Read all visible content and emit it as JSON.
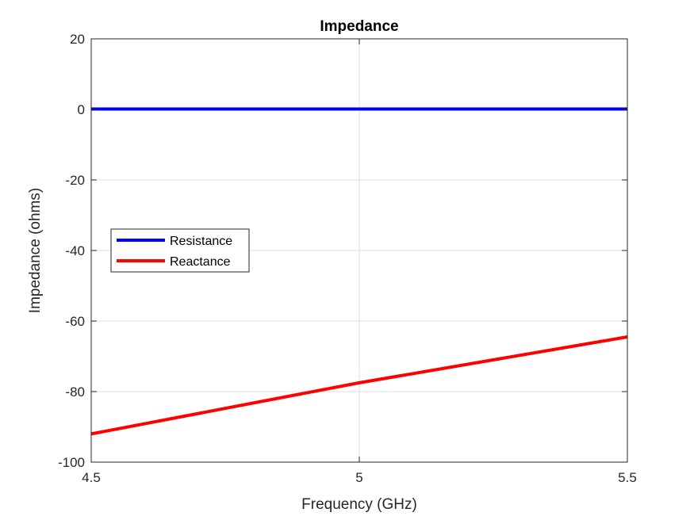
{
  "chart_data": {
    "type": "line",
    "title": "Impedance",
    "xlabel": "Frequency (GHz)",
    "ylabel": "Impedance (ohms)",
    "xlim": [
      4.5,
      5.5
    ],
    "ylim": [
      -100,
      20
    ],
    "xticks": [
      4.5,
      5,
      5.5
    ],
    "xtick_labels": [
      "4.5",
      "5",
      "5.5"
    ],
    "yticks": [
      20,
      0,
      -20,
      -40,
      -60,
      -80,
      -100
    ],
    "ytick_labels": [
      "20",
      "0",
      "-20",
      "-40",
      "-60",
      "-80",
      "-100"
    ],
    "grid": true,
    "legend_position": "middle-left",
    "series": [
      {
        "name": "Resistance",
        "color": "#0000ff",
        "x": [
          4.5,
          5.0,
          5.5
        ],
        "y": [
          0.1,
          0.1,
          0.1
        ]
      },
      {
        "name": "Reactance",
        "color": "#ff0000",
        "x": [
          4.5,
          5.0,
          5.5
        ],
        "y": [
          -92,
          -77.5,
          -64.5
        ]
      }
    ]
  }
}
